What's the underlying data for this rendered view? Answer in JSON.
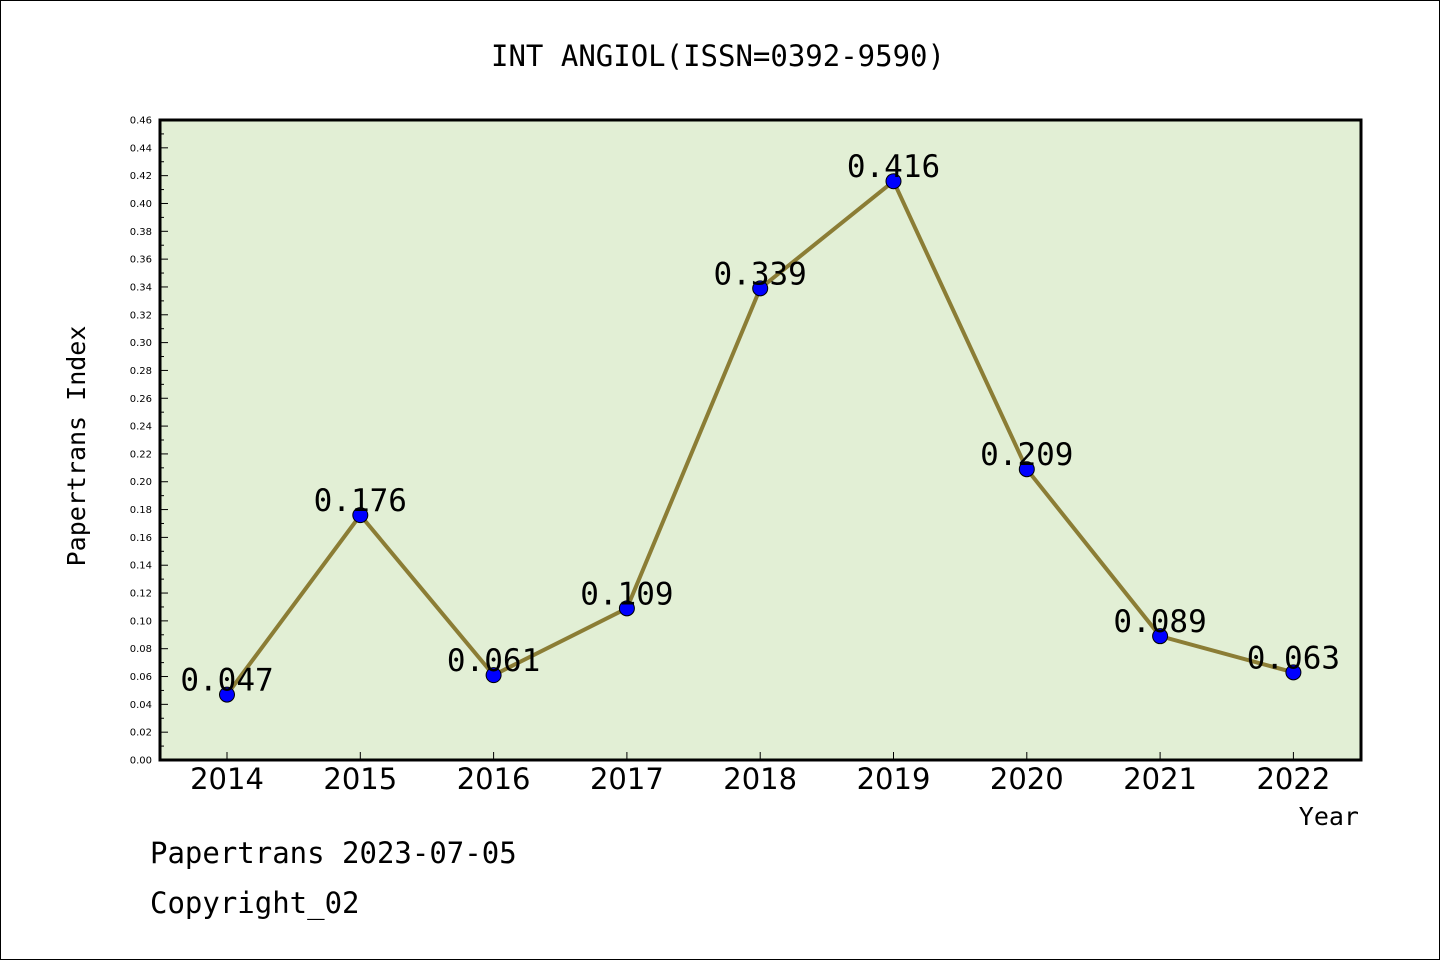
{
  "chart_data": {
    "type": "line",
    "title": "INT ANGIOL(ISSN=0392-9590)",
    "xlabel": "Year",
    "ylabel": "Papertrans Index",
    "categories": [
      "2014",
      "2015",
      "2016",
      "2017",
      "2018",
      "2019",
      "2020",
      "2021",
      "2022"
    ],
    "values": [
      0.047,
      0.176,
      0.061,
      0.109,
      0.339,
      0.416,
      0.209,
      0.089,
      0.063
    ],
    "data_labels": [
      "0.047",
      "0.176",
      "0.061",
      "0.109",
      "0.339",
      "0.416",
      "0.209",
      "0.089",
      "0.063"
    ],
    "ylim": [
      0,
      0.46
    ],
    "yticks": [
      "0.00",
      "0.02",
      "0.04",
      "0.06",
      "0.08",
      "0.10",
      "0.12",
      "0.14",
      "0.16",
      "0.18",
      "0.20",
      "0.22",
      "0.24",
      "0.26",
      "0.28",
      "0.30",
      "0.32",
      "0.34",
      "0.36",
      "0.38",
      "0.40",
      "0.42",
      "0.44",
      "0.46"
    ],
    "grid": false,
    "colors": {
      "plot_background": "#e2efd5",
      "line": "#8b7d35",
      "marker": "#0000ff"
    }
  },
  "footer": {
    "date_line": "Papertrans 2023-07-05",
    "copyright": "Copyright_02"
  }
}
